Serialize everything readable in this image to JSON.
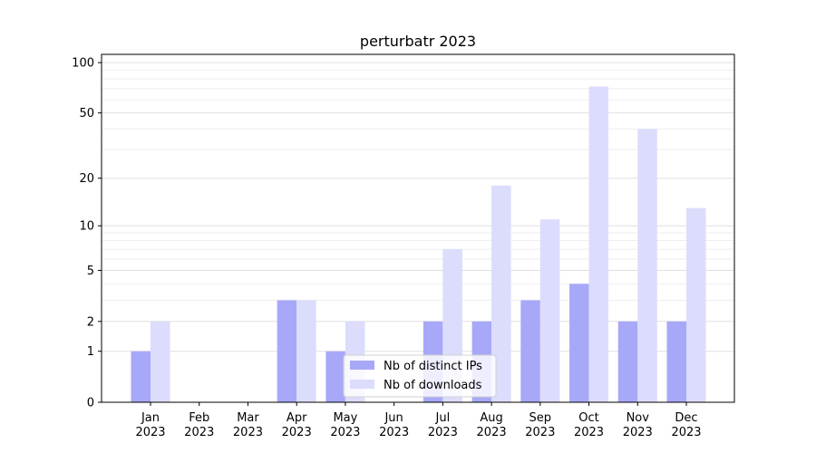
{
  "chart_data": {
    "type": "bar",
    "title": "perturbatr 2023",
    "categories": [
      "Jan 2023",
      "Feb 2023",
      "Mar 2023",
      "Apr 2023",
      "May 2023",
      "Jun 2023",
      "Jul 2023",
      "Aug 2023",
      "Sep 2023",
      "Oct 2023",
      "Nov 2023",
      "Dec 2023"
    ],
    "series": [
      {
        "name": "Nb of distinct IPs",
        "color": "#a8a8f8",
        "values": [
          1,
          0,
          0,
          3,
          1,
          0,
          2,
          2,
          3,
          4,
          2,
          2
        ]
      },
      {
        "name": "Nb of downloads",
        "color": "#dcdcfc",
        "values": [
          2,
          0,
          0,
          3,
          2,
          0,
          7,
          18,
          11,
          72,
          40,
          13
        ]
      }
    ],
    "yscale": "log1p",
    "ylim": [
      0,
      112
    ],
    "yticks": [
      0,
      1,
      2,
      5,
      10,
      20,
      50,
      100
    ],
    "yminorticks": [
      3,
      4,
      6,
      7,
      8,
      9,
      30,
      40,
      60,
      70,
      80,
      90
    ],
    "grid": true,
    "legend": "lower center"
  }
}
